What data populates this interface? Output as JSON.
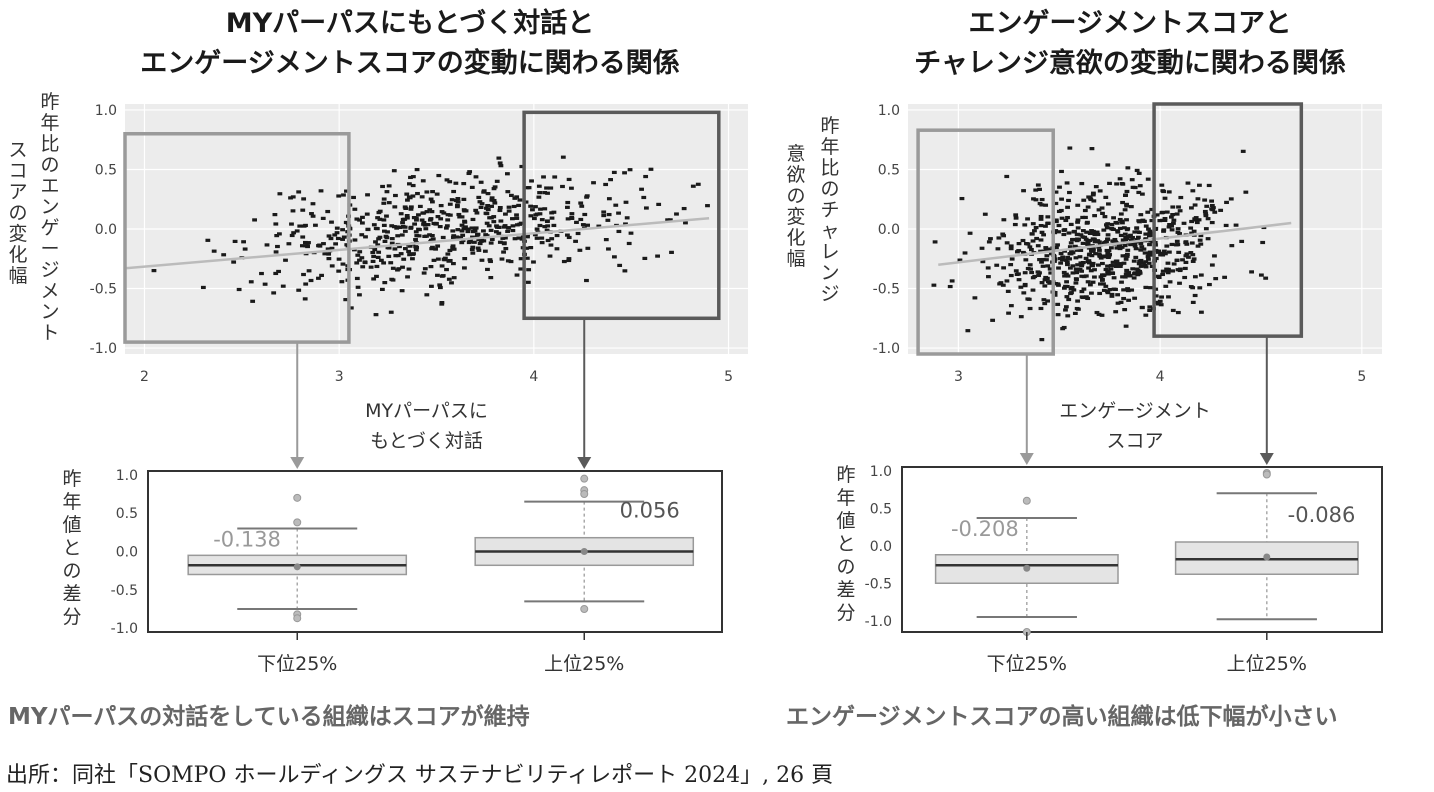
{
  "titles": {
    "left_line1": "MYパーパスにもとづく対話と",
    "left_line2": "エンゲージメントスコアの変動に関わる関係",
    "right_line1": "エンゲージメントスコアと",
    "right_line2": "チャレンジ意欲の変動に関わる関係"
  },
  "captions": {
    "left": "MYパーパスの対話をしている組織はスコアが維持",
    "right": "エンゲージメントスコアの高い組織は低下幅が小さい"
  },
  "source": "出所：同社「SOMPO ホールディングス サステナビリティレポート 2024」, 26 頁",
  "colors": {
    "point": "#1a1a1a",
    "panel_bg": "#ececec",
    "highlight_box_light": "#9a9a9a",
    "highlight_box_dark": "#5a5a5a",
    "trend": "#bbbbbb",
    "box_fill": "#e4e4e4"
  },
  "chart_data": [
    {
      "id": "left-scatter",
      "type": "scatter",
      "xlabel_lines": [
        "MYパーパスに",
        "もとづく対話"
      ],
      "ylabel_cols": [
        "昨年比のエンゲージメント",
        "スコアの変化幅"
      ],
      "xlim": [
        1.9,
        5.1
      ],
      "ylim": [
        -1.05,
        1.05
      ],
      "x_ticks": [
        2,
        3,
        4,
        5
      ],
      "y_ticks": [
        1.0,
        0.5,
        0.0,
        -0.5,
        -1.0
      ],
      "grid": true,
      "trend": {
        "x": [
          1.9,
          4.9
        ],
        "y": [
          -0.33,
          0.09
        ]
      },
      "cloud": {
        "count": 640,
        "x_mean": 3.55,
        "x_sd": 0.5,
        "y_mean": -0.02,
        "y_sd": 0.23,
        "slope": 0.13,
        "seed": 7
      },
      "highlight_boxes": [
        {
          "label": "下位25%",
          "x": [
            1.9,
            3.05
          ],
          "y": [
            -0.95,
            0.8
          ],
          "style": "light"
        },
        {
          "label": "上位25%",
          "x": [
            3.95,
            4.95
          ],
          "y": [
            -0.75,
            0.98
          ],
          "style": "dark"
        }
      ]
    },
    {
      "id": "right-scatter",
      "type": "scatter",
      "xlabel_lines": [
        "エンゲージメント",
        "スコア"
      ],
      "ylabel_cols": [
        "昨年比のチャレンジ",
        "意欲の変化幅"
      ],
      "xlim": [
        2.75,
        5.1
      ],
      "ylim": [
        -1.05,
        1.05
      ],
      "x_ticks": [
        3,
        4,
        5
      ],
      "y_ticks": [
        1.0,
        0.5,
        0.0,
        -0.5,
        -1.0
      ],
      "grid": true,
      "trend": {
        "x": [
          2.9,
          4.65
        ],
        "y": [
          -0.3,
          0.05
        ]
      },
      "cloud": {
        "count": 760,
        "x_mean": 3.75,
        "x_sd": 0.3,
        "y_mean": -0.17,
        "y_sd": 0.26,
        "slope": 0.2,
        "seed": 13
      },
      "highlight_boxes": [
        {
          "label": "下位25%",
          "x": [
            2.8,
            3.47
          ],
          "y": [
            -1.05,
            0.83
          ],
          "style": "light"
        },
        {
          "label": "上位25%",
          "x": [
            3.97,
            4.7
          ],
          "y": [
            -0.9,
            1.05
          ],
          "style": "dark"
        }
      ]
    },
    {
      "id": "left-box",
      "type": "box",
      "ylabel": "昨年値との差分",
      "categories": [
        "下位25%",
        "上位25%"
      ],
      "ylim": [
        -1.05,
        1.05
      ],
      "y_ticks": [
        1.0,
        0.5,
        0.0,
        -0.5,
        -1.0
      ],
      "boxes": [
        {
          "category": "下位25%",
          "q1": -0.3,
          "median": -0.18,
          "q3": -0.05,
          "whisker_low": -0.75,
          "whisker_high": 0.3,
          "mean": -0.2,
          "outliers": [
            0.7,
            0.38,
            -0.82,
            -0.87
          ],
          "stat_label": "-0.138",
          "stat_color": "grey"
        },
        {
          "category": "上位25%",
          "q1": -0.18,
          "median": 0.0,
          "q3": 0.18,
          "whisker_low": -0.65,
          "whisker_high": 0.65,
          "mean": 0.0,
          "outliers": [
            0.8,
            0.75,
            0.95,
            -0.75
          ],
          "stat_label": "0.056",
          "stat_color": "dark"
        }
      ]
    },
    {
      "id": "right-box",
      "type": "box",
      "ylabel": "昨年値との差分",
      "categories": [
        "下位25%",
        "上位25%"
      ],
      "ylim": [
        -1.15,
        1.05
      ],
      "y_ticks": [
        1.0,
        0.5,
        0.0,
        -0.5,
        -1.0
      ],
      "boxes": [
        {
          "category": "下位25%",
          "q1": -0.5,
          "median": -0.26,
          "q3": -0.12,
          "whisker_low": -0.95,
          "whisker_high": 0.37,
          "mean": -0.3,
          "outliers": [
            0.6,
            -1.15
          ],
          "stat_label": "-0.208",
          "stat_color": "grey"
        },
        {
          "category": "上位25%",
          "q1": -0.38,
          "median": -0.18,
          "q3": 0.05,
          "whisker_low": -0.98,
          "whisker_high": 0.7,
          "mean": -0.15,
          "outliers": [
            0.97,
            0.95
          ],
          "stat_label": "-0.086",
          "stat_color": "dark"
        }
      ]
    }
  ]
}
